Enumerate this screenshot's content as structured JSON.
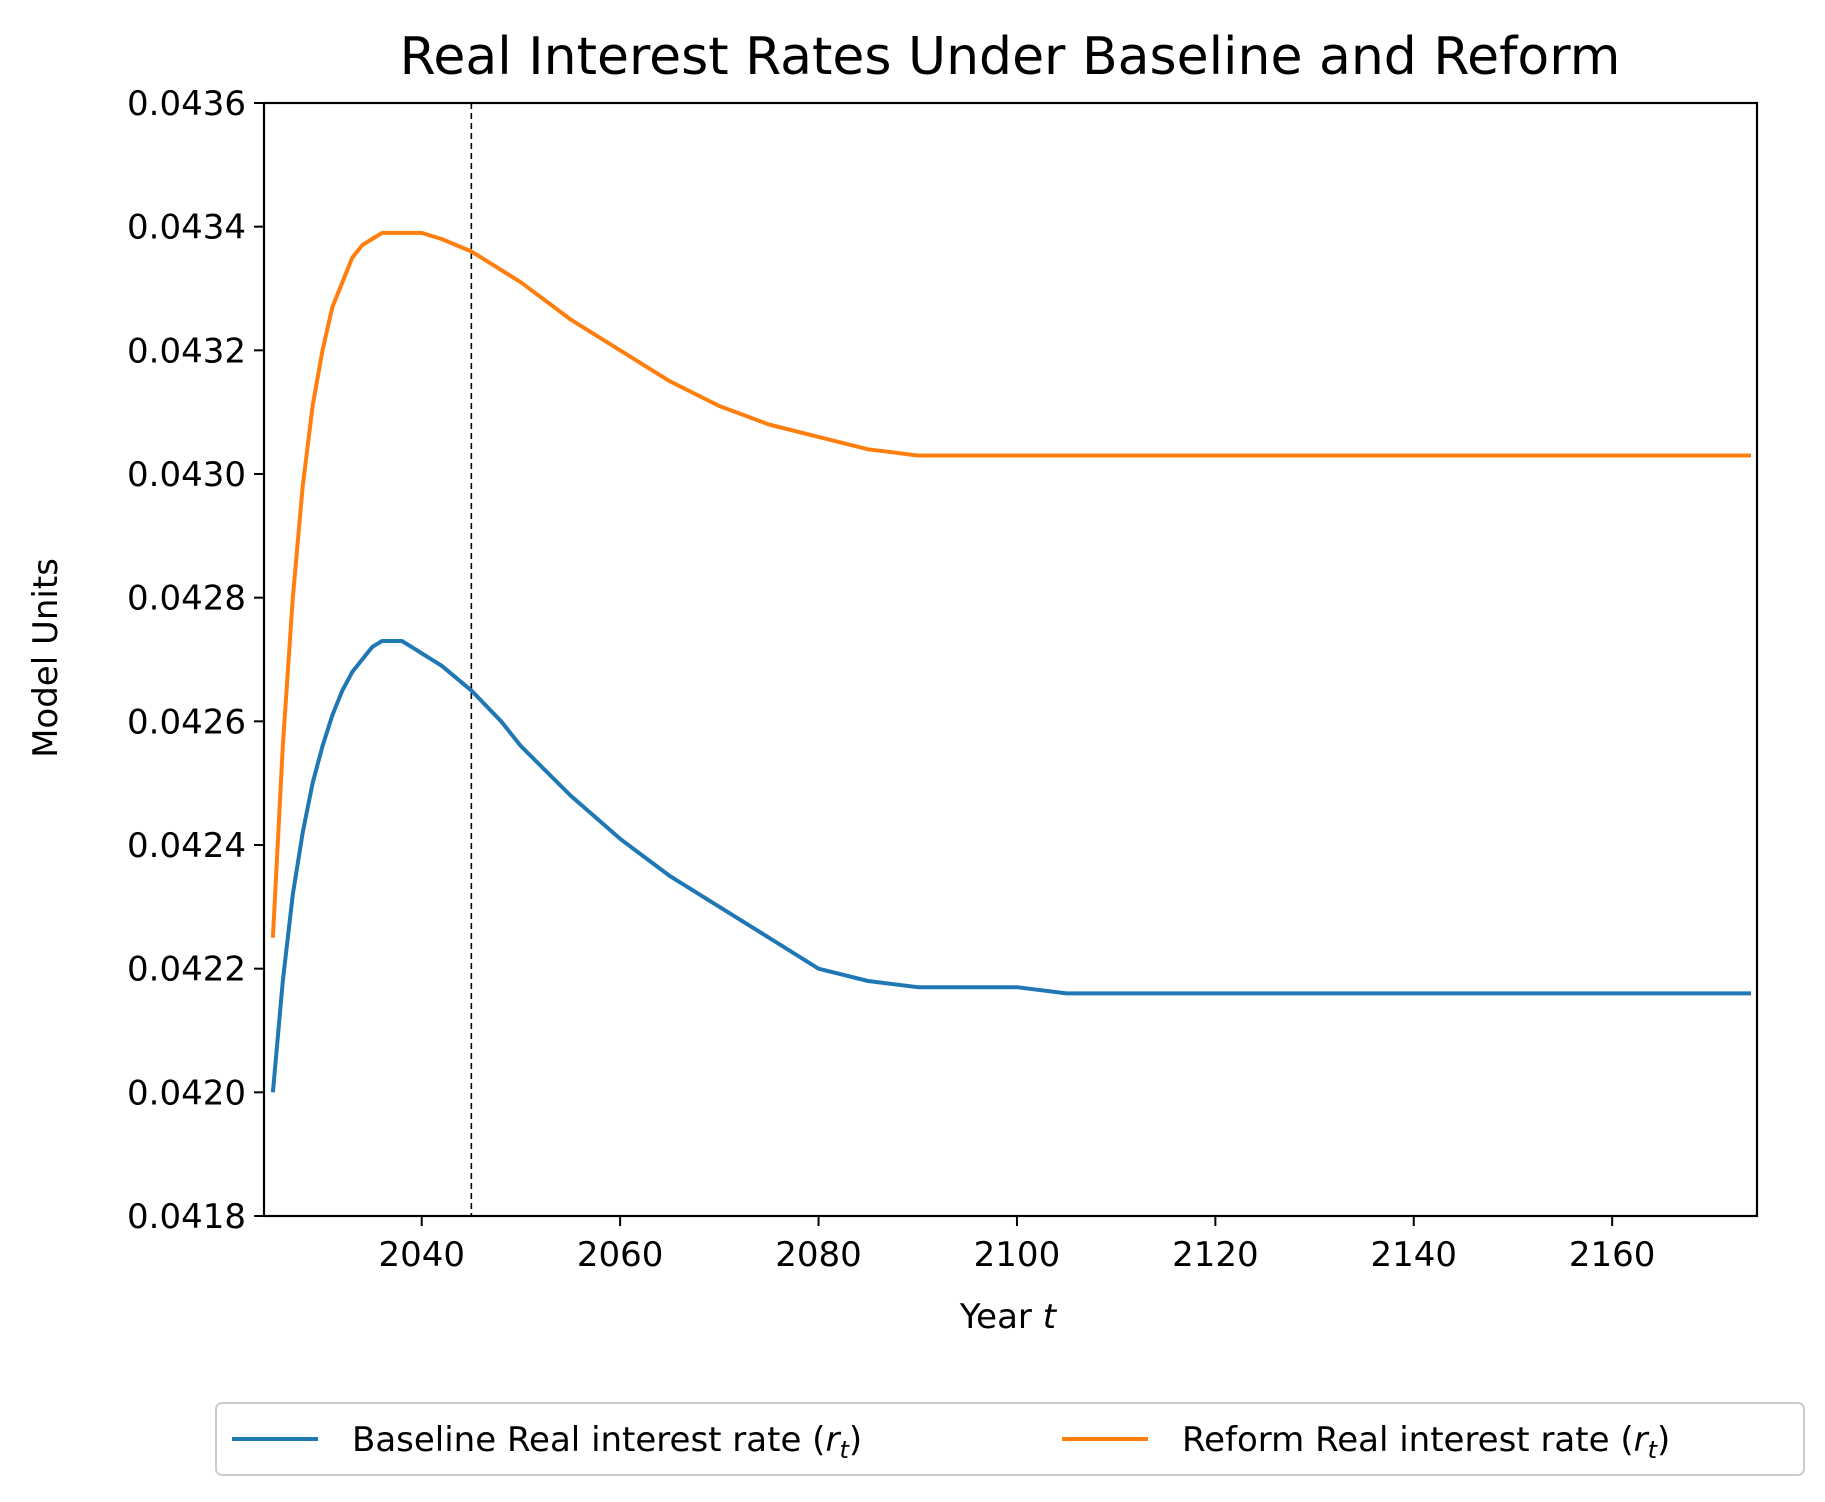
{
  "chart_data": {
    "type": "line",
    "title": "Real Interest Rates Under Baseline and Reform",
    "xlabel_text": "Year ",
    "xlabel_italic": "t",
    "ylabel": "Model Units",
    "xlim": [
      2024.1,
      2174.6
    ],
    "ylim": [
      0.0418,
      0.0436
    ],
    "xticks": [
      2040,
      2060,
      2080,
      2100,
      2120,
      2140,
      2160
    ],
    "yticks": [
      "0.0418",
      "0.0420",
      "0.0422",
      "0.0424",
      "0.0426",
      "0.0428",
      "0.0430",
      "0.0432",
      "0.0434",
      "0.0436"
    ],
    "vline_x": 2045,
    "legend_placement": "bottom-center, below axes",
    "series": [
      {
        "name": "Baseline Real interest rate (r_t)",
        "legend_prefix": "Baseline Real interest rate (",
        "legend_var": "r",
        "legend_sub": "t",
        "legend_suffix": ")",
        "color": "#1f77b4",
        "x": [
          2025,
          2026,
          2027,
          2028,
          2029,
          2030,
          2031,
          2032,
          2033,
          2034,
          2035,
          2036,
          2037,
          2038,
          2039,
          2040,
          2042,
          2045,
          2048,
          2050,
          2055,
          2060,
          2065,
          2070,
          2075,
          2080,
          2085,
          2090,
          2095,
          2100,
          2105,
          2110,
          2115,
          2120,
          2125,
          2130,
          2135,
          2140,
          2150,
          2160,
          2174
        ],
        "values": [
          0.042,
          0.04218,
          0.04232,
          0.04242,
          0.0425,
          0.04256,
          0.04261,
          0.04265,
          0.04268,
          0.0427,
          0.04272,
          0.04273,
          0.04273,
          0.04273,
          0.04272,
          0.04271,
          0.04269,
          0.04265,
          0.0426,
          0.04256,
          0.04248,
          0.04241,
          0.04235,
          0.0423,
          0.04225,
          0.0422,
          0.04218,
          0.04217,
          0.04217,
          0.04217,
          0.04216,
          0.04216,
          0.04216,
          0.04216,
          0.04216,
          0.04216,
          0.04216,
          0.04216,
          0.04216,
          0.04216,
          0.04216
        ]
      },
      {
        "name": "Reform Real interest rate (r_t)",
        "legend_prefix": "Reform Real interest rate (",
        "legend_var": "r",
        "legend_sub": "t",
        "legend_suffix": ")",
        "color": "#ff7f0e",
        "x": [
          2025,
          2026,
          2027,
          2028,
          2029,
          2030,
          2031,
          2032,
          2033,
          2034,
          2035,
          2036,
          2037,
          2038,
          2039,
          2040,
          2042,
          2045,
          2048,
          2050,
          2055,
          2060,
          2065,
          2070,
          2075,
          2080,
          2085,
          2090,
          2095,
          2100,
          2105,
          2110,
          2115,
          2120,
          2125,
          2130,
          2135,
          2140,
          2150,
          2160,
          2174
        ],
        "values": [
          0.04225,
          0.04256,
          0.0428,
          0.04298,
          0.04311,
          0.0432,
          0.04327,
          0.04331,
          0.04335,
          0.04337,
          0.04338,
          0.04339,
          0.04339,
          0.04339,
          0.04339,
          0.04339,
          0.04338,
          0.04336,
          0.04333,
          0.04331,
          0.04325,
          0.0432,
          0.04315,
          0.04311,
          0.04308,
          0.04306,
          0.04304,
          0.04303,
          0.04303,
          0.04303,
          0.04303,
          0.04303,
          0.04303,
          0.04303,
          0.04303,
          0.04303,
          0.04303,
          0.04303,
          0.04303,
          0.04303,
          0.04303
        ]
      }
    ]
  }
}
